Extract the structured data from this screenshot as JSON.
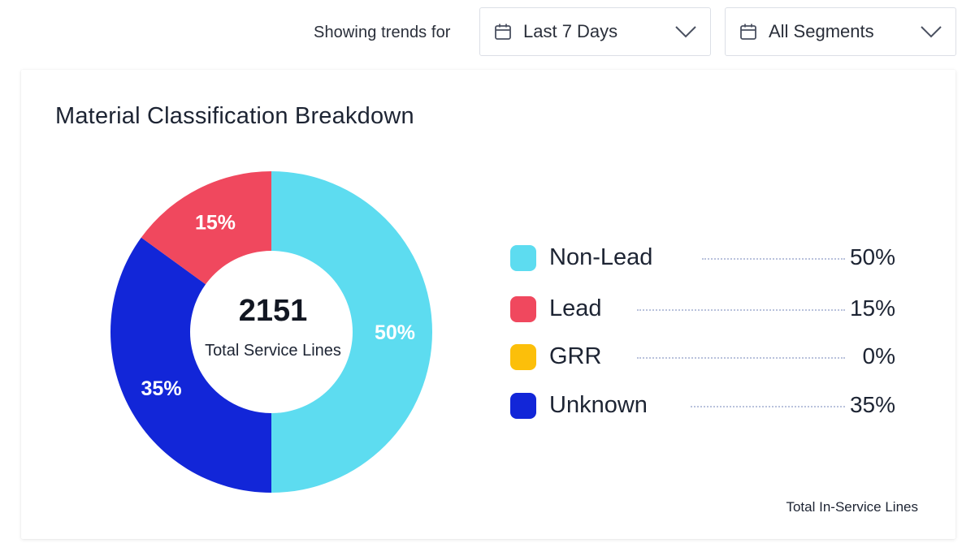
{
  "filters": {
    "trend_label": "Showing trends for",
    "date_range": "Last 7 Days",
    "segment": "All Segments"
  },
  "card": {
    "title": "Material Classification Breakdown",
    "total_value": "2151",
    "total_label": "Total Service Lines",
    "footnote": "Total In-Service Lines"
  },
  "chart_data": {
    "type": "pie",
    "title": "Material Classification Breakdown",
    "donut": true,
    "center_value": 2151,
    "center_label": "Total Service Lines",
    "unit": "%",
    "slices": [
      {
        "label": "Non-Lead",
        "value": 50,
        "display": "50%",
        "color": "#5ddcf0"
      },
      {
        "label": "Lead",
        "value": 15,
        "display": "15%",
        "color": "#f0485e"
      },
      {
        "label": "GRR",
        "value": 0,
        "display": "0%",
        "color": "#fcbf0a"
      },
      {
        "label": "Unknown",
        "value": 35,
        "display": "35%",
        "color": "#1226d8"
      }
    ],
    "legend_position": "right"
  }
}
